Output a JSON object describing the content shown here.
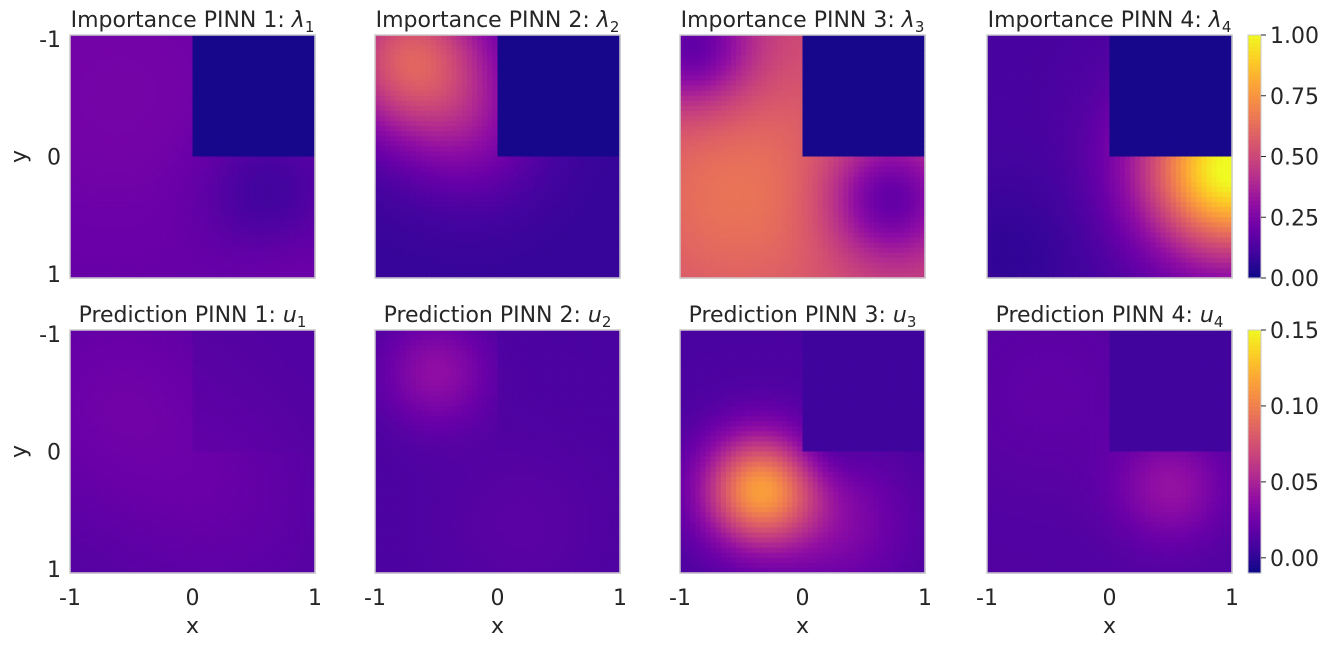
{
  "chart_data": [
    {
      "type": "heatmap",
      "title_text": "Importance PINN 1: ",
      "title_sym": "λ",
      "title_sub": "1",
      "field": "lambda1",
      "clim": [
        0,
        1
      ]
    },
    {
      "type": "heatmap",
      "title_text": "Importance PINN 2: ",
      "title_sym": "λ",
      "title_sub": "2",
      "field": "lambda2",
      "clim": [
        0,
        1
      ]
    },
    {
      "type": "heatmap",
      "title_text": "Importance PINN 3: ",
      "title_sym": "λ",
      "title_sub": "3",
      "field": "lambda3",
      "clim": [
        0,
        1
      ]
    },
    {
      "type": "heatmap",
      "title_text": "Importance PINN 4: ",
      "title_sym": "λ",
      "title_sub": "4",
      "field": "lambda4",
      "clim": [
        0,
        1
      ]
    },
    {
      "type": "heatmap",
      "title_text": "Prediction PINN 1: ",
      "title_sym": "u",
      "title_sub": "1",
      "field": "u1",
      "clim": [
        -0.01,
        0.15
      ]
    },
    {
      "type": "heatmap",
      "title_text": "Prediction PINN 2: ",
      "title_sym": "u",
      "title_sub": "2",
      "field": "u2",
      "clim": [
        -0.01,
        0.15
      ]
    },
    {
      "type": "heatmap",
      "title_text": "Prediction PINN 3: ",
      "title_sym": "u",
      "title_sub": "3",
      "field": "u3",
      "clim": [
        -0.01,
        0.15
      ]
    },
    {
      "type": "heatmap",
      "title_text": "Prediction PINN 4: ",
      "title_sym": "u",
      "title_sub": "4",
      "field": "u4",
      "clim": [
        -0.01,
        0.15
      ]
    }
  ],
  "axes": {
    "xlabel": "x",
    "ylabel": "y",
    "x_ticks": [
      "-1",
      "0",
      "1"
    ],
    "y_ticks": [
      "-1",
      "0",
      "1"
    ],
    "xlim": [
      -1,
      1
    ],
    "ylim": [
      -1,
      1
    ]
  },
  "colorbars": [
    {
      "ticks": [
        "0.00",
        "0.25",
        "0.50",
        "0.75",
        "1.00"
      ],
      "values": [
        0,
        0.25,
        0.5,
        0.75,
        1.0
      ],
      "range": [
        0,
        1
      ]
    },
    {
      "ticks": [
        "0.00",
        "0.05",
        "0.10",
        "0.15"
      ],
      "values": [
        0,
        0.05,
        0.1,
        0.15
      ],
      "range": [
        -0.01,
        0.15
      ]
    }
  ],
  "colormap": "plasma",
  "colors": {
    "text": "#262626",
    "frame": "#cccccc"
  }
}
